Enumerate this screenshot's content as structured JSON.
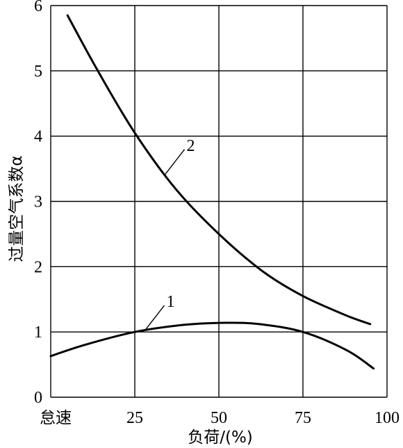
{
  "chart_data": {
    "type": "line",
    "title": "",
    "xlabel": "负荷/(%)",
    "ylabel": "过量空气系数α",
    "xlim": [
      0,
      100
    ],
    "ylim": [
      0,
      6
    ],
    "x_ticks": [
      {
        "value": 0,
        "label": "怠速"
      },
      {
        "value": 25,
        "label": "25"
      },
      {
        "value": 50,
        "label": "50"
      },
      {
        "value": 75,
        "label": "75"
      },
      {
        "value": 100,
        "label": "100"
      }
    ],
    "y_ticks": [
      0,
      1,
      2,
      3,
      4,
      5,
      6
    ],
    "grid": true,
    "series": [
      {
        "name": "1",
        "x": [
          0,
          10,
          25,
          40,
          52,
          62,
          75,
          88,
          96
        ],
        "y": [
          0.63,
          0.8,
          1.0,
          1.11,
          1.14,
          1.12,
          1.0,
          0.72,
          0.44
        ]
      },
      {
        "name": "2",
        "x": [
          5,
          14,
          25,
          37,
          50,
          63,
          75,
          88,
          95
        ],
        "y": [
          5.85,
          5.0,
          4.05,
          3.2,
          2.5,
          1.93,
          1.55,
          1.25,
          1.12
        ]
      }
    ],
    "annotations": [
      {
        "series": "1",
        "text": "1",
        "at_x": 28
      },
      {
        "series": "2",
        "text": "2",
        "at_x": 34
      }
    ]
  }
}
